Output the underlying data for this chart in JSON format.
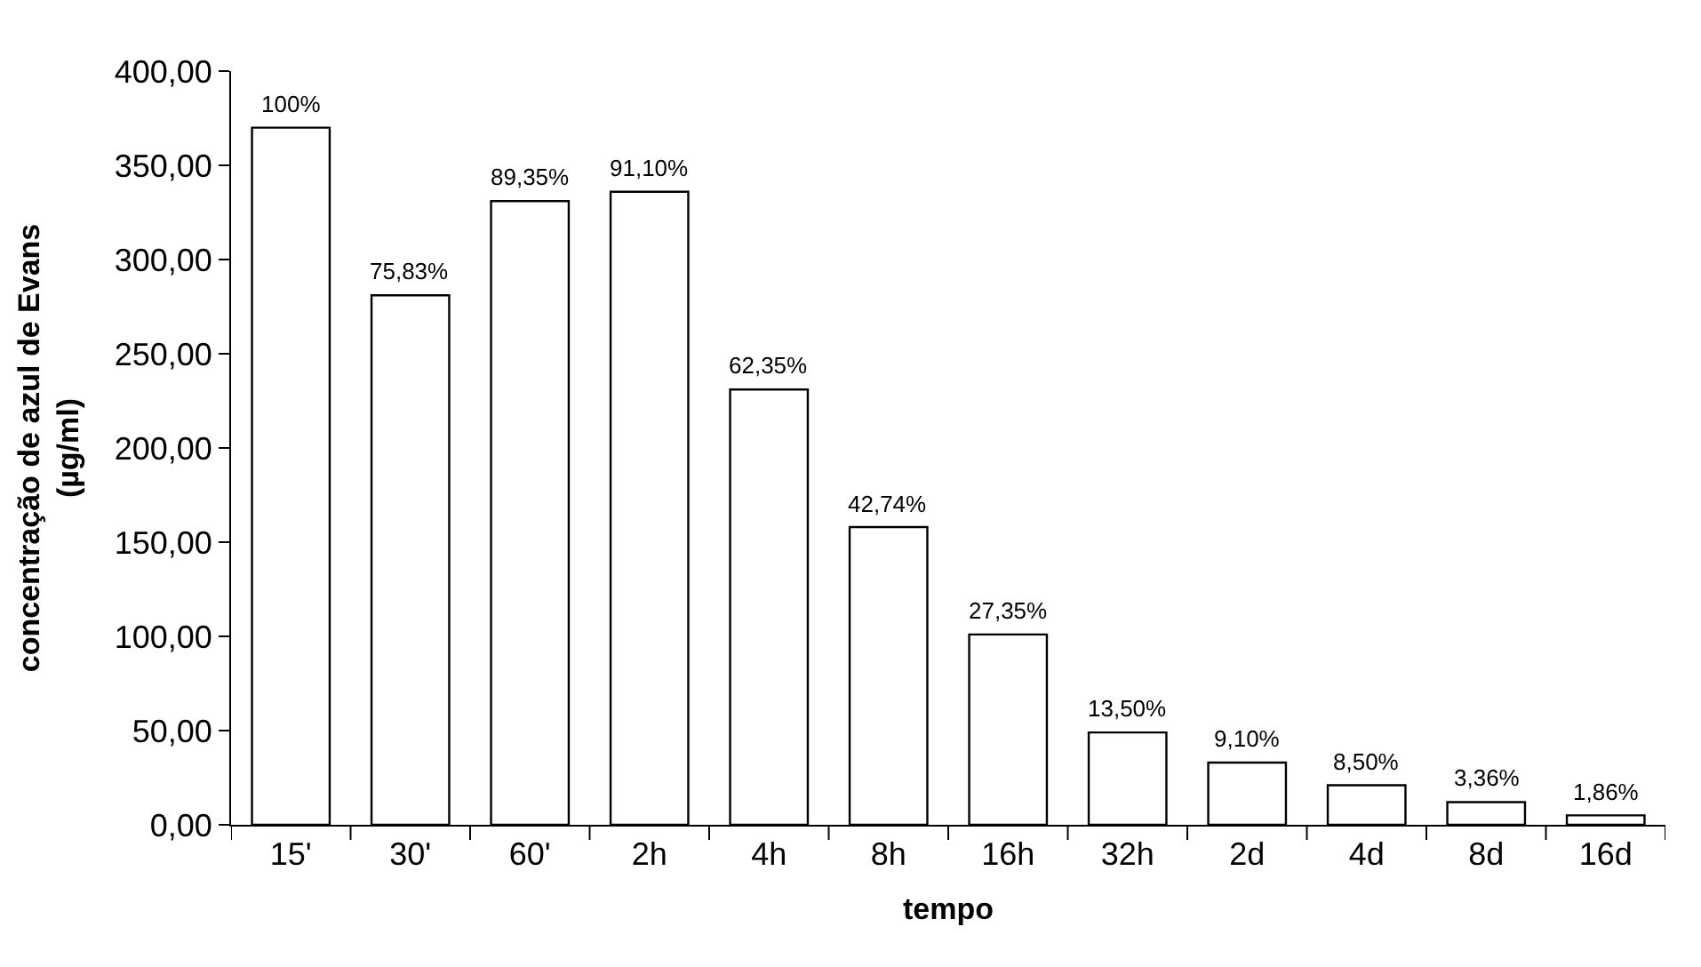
{
  "chart_data": {
    "type": "bar",
    "xlabel": "tempo",
    "ylabel": "concentração de azul de Evans\n(µg/ml)",
    "categories": [
      "15'",
      "30'",
      "60'",
      "2h",
      "4h",
      "8h",
      "16h",
      "32h",
      "2d",
      "4d",
      "8d",
      "16d"
    ],
    "values": [
      370,
      281,
      331,
      336,
      231,
      158,
      101,
      49,
      33,
      21,
      12,
      5
    ],
    "annotations": [
      {
        "text": "100%",
        "x": "15'",
        "y": 370
      },
      {
        "text": "75,83%",
        "x": "30'",
        "y": 281
      },
      {
        "text": "89,35%",
        "x": "60'",
        "y": 331
      },
      {
        "text": "91,10%",
        "x": "2h",
        "y": 336
      },
      {
        "text": "62,35%",
        "x": "4h",
        "y": 231
      },
      {
        "text": "42,74%",
        "x": "8h",
        "y": 158
      },
      {
        "text": "27,35%",
        "x": "16h",
        "y": 101
      },
      {
        "text": "13,50%",
        "x": "32h",
        "y": 49
      },
      {
        "text": "9,10%",
        "x": "2d",
        "y": 33
      },
      {
        "text": "8,50%",
        "x": "4d",
        "y": 21
      },
      {
        "text": "3,36%",
        "x": "8d",
        "y": 12
      },
      {
        "text": "1,86%",
        "x": "16d",
        "y": 5
      }
    ],
    "color": "#ffffff",
    "ylim": [
      0,
      400
    ],
    "yticks": [
      {
        "value": 0,
        "label": "0,00"
      },
      {
        "value": 50,
        "label": "50,00"
      },
      {
        "value": 100,
        "label": "100,00"
      },
      {
        "value": 150,
        "label": "150,00"
      },
      {
        "value": 200,
        "label": "200,00"
      },
      {
        "value": 250,
        "label": "250,00"
      },
      {
        "value": 300,
        "label": "300,00"
      },
      {
        "value": 350,
        "label": "350,00"
      },
      {
        "value": 400,
        "label": "400,00"
      }
    ],
    "legend": false
  }
}
